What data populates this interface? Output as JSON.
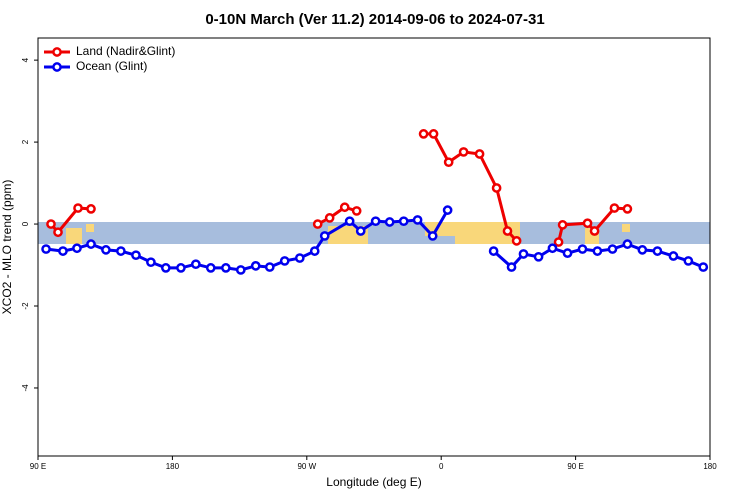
{
  "chart_data": {
    "type": "line",
    "title": "0-10N March (Ver 11.2)   2014-09-06 to 2024-07-31",
    "x_label": "Longitude (deg E)",
    "y_label": "XCO2 - MLO trend (ppm)",
    "xlim": [
      90,
      540
    ],
    "xticks": [
      {
        "value": 90,
        "label": "90 E"
      },
      {
        "value": 180,
        "label": "180"
      },
      {
        "value": 270,
        "label": "90 W"
      },
      {
        "value": 360,
        "label": "0"
      },
      {
        "value": 450,
        "label": "90 E"
      },
      {
        "value": 540,
        "label": "180"
      }
    ],
    "ylim": [
      -5.66,
      4.54
    ],
    "yticks": [
      -4,
      -2,
      0,
      2,
      4
    ],
    "legend": "top-left",
    "series": [
      {
        "name": "Land (Nadir&Glint)",
        "color": "#ee0000",
        "x": [
          98.7,
          103.4,
          116.8,
          125.5,
          200,
          277.3,
          285.3,
          295.4,
          303.4,
          320,
          348.2,
          354.9,
          365,
          375,
          385.7,
          397.1,
          404.4,
          410.5,
          420,
          438.6,
          441.3,
          458,
          462.7,
          476,
          484.7
        ],
        "values": [
          0,
          -0.2,
          0.39,
          0.37,
          null,
          0,
          0.15,
          0.41,
          0.32,
          null,
          2.2,
          2.2,
          1.51,
          1.76,
          1.71,
          0.88,
          -0.17,
          -0.41,
          null,
          -0.44,
          -0.02,
          0.02,
          -0.17,
          0.39,
          0.37
        ]
      },
      {
        "name": "Ocean (Glint)",
        "color": "#0000ee",
        "x": [
          95.4,
          106.7,
          116.1,
          125.5,
          135.5,
          145.5,
          155.6,
          165.6,
          175.6,
          185.7,
          195.7,
          205.7,
          215.8,
          225.8,
          235.8,
          245.2,
          255.2,
          265.3,
          275.3,
          282,
          298.7,
          306.1,
          316.1,
          325.5,
          334.9,
          344.2,
          354.3,
          364.3,
          380,
          395.1,
          407.1,
          415.1,
          425.2,
          434.5,
          444.6,
          454.6,
          464.6,
          474.7,
          484.7,
          494.7,
          504.8,
          515.5,
          525.5,
          535.5
        ],
        "values": [
          -0.61,
          -0.66,
          -0.59,
          -0.49,
          -0.63,
          -0.66,
          -0.76,
          -0.93,
          -1.07,
          -1.07,
          -0.98,
          -1.07,
          -1.07,
          -1.12,
          -1.02,
          -1.05,
          -0.9,
          -0.83,
          -0.66,
          -0.29,
          0.07,
          -0.17,
          0.07,
          0.05,
          0.07,
          0.1,
          -0.29,
          0.34,
          null,
          -0.66,
          -1.05,
          -0.73,
          -0.8,
          -0.59,
          -0.71,
          -0.61,
          -0.66,
          -0.61,
          -0.49,
          -0.63,
          -0.66,
          -0.78,
          -0.9,
          -1.05
        ]
      }
    ]
  }
}
